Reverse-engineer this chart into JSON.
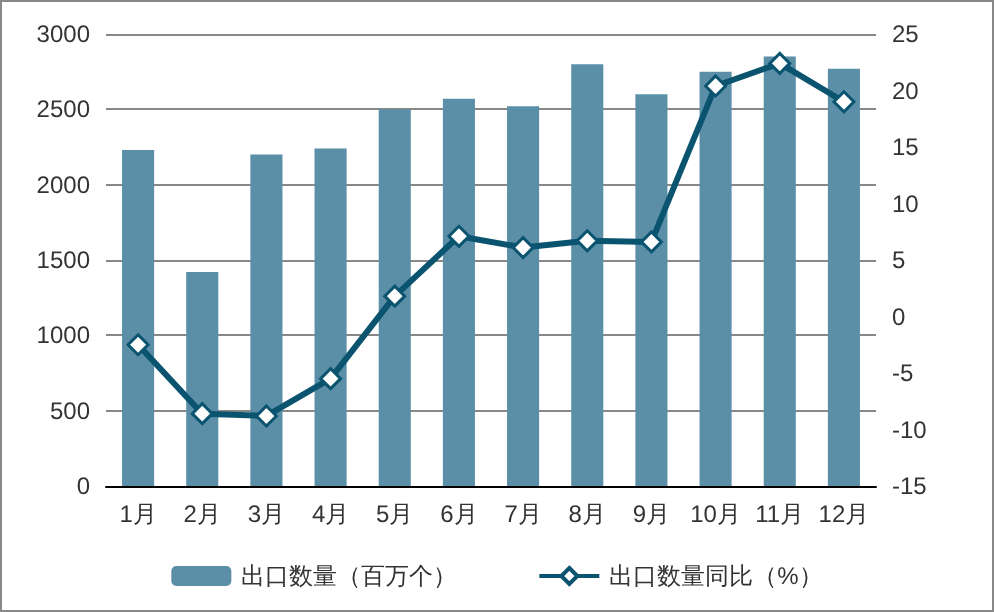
{
  "chart_data": {
    "type": "bar",
    "categories": [
      "1月",
      "2月",
      "3月",
      "4月",
      "5月",
      "6月",
      "7月",
      "8月",
      "9月",
      "10月",
      "11月",
      "12月"
    ],
    "series": [
      {
        "name": "出口数量（百万个）",
        "color": "#5b8fa8",
        "values": [
          2230,
          1420,
          2200,
          2240,
          2500,
          2570,
          2520,
          2800,
          2600,
          2750,
          2850,
          2770
        ]
      },
      {
        "name": "出口数量同比（%）",
        "type": "line",
        "axis": "y2",
        "color": "#0b5470",
        "marker": "diamond",
        "values": [
          -2.5,
          -8.6,
          -8.8,
          -5.5,
          1.8,
          7.1,
          6.1,
          6.7,
          6.6,
          20.4,
          22.4,
          19.0
        ]
      }
    ],
    "ylim": [
      0,
      3000
    ],
    "yticks": [
      0,
      500,
      1000,
      1500,
      2000,
      2500,
      3000
    ],
    "y2lim": [
      -15,
      25
    ],
    "y2ticks": [
      -15,
      -10,
      -5,
      0,
      5,
      10,
      15,
      20,
      25
    ],
    "grid": "y",
    "legend": "bottom"
  }
}
